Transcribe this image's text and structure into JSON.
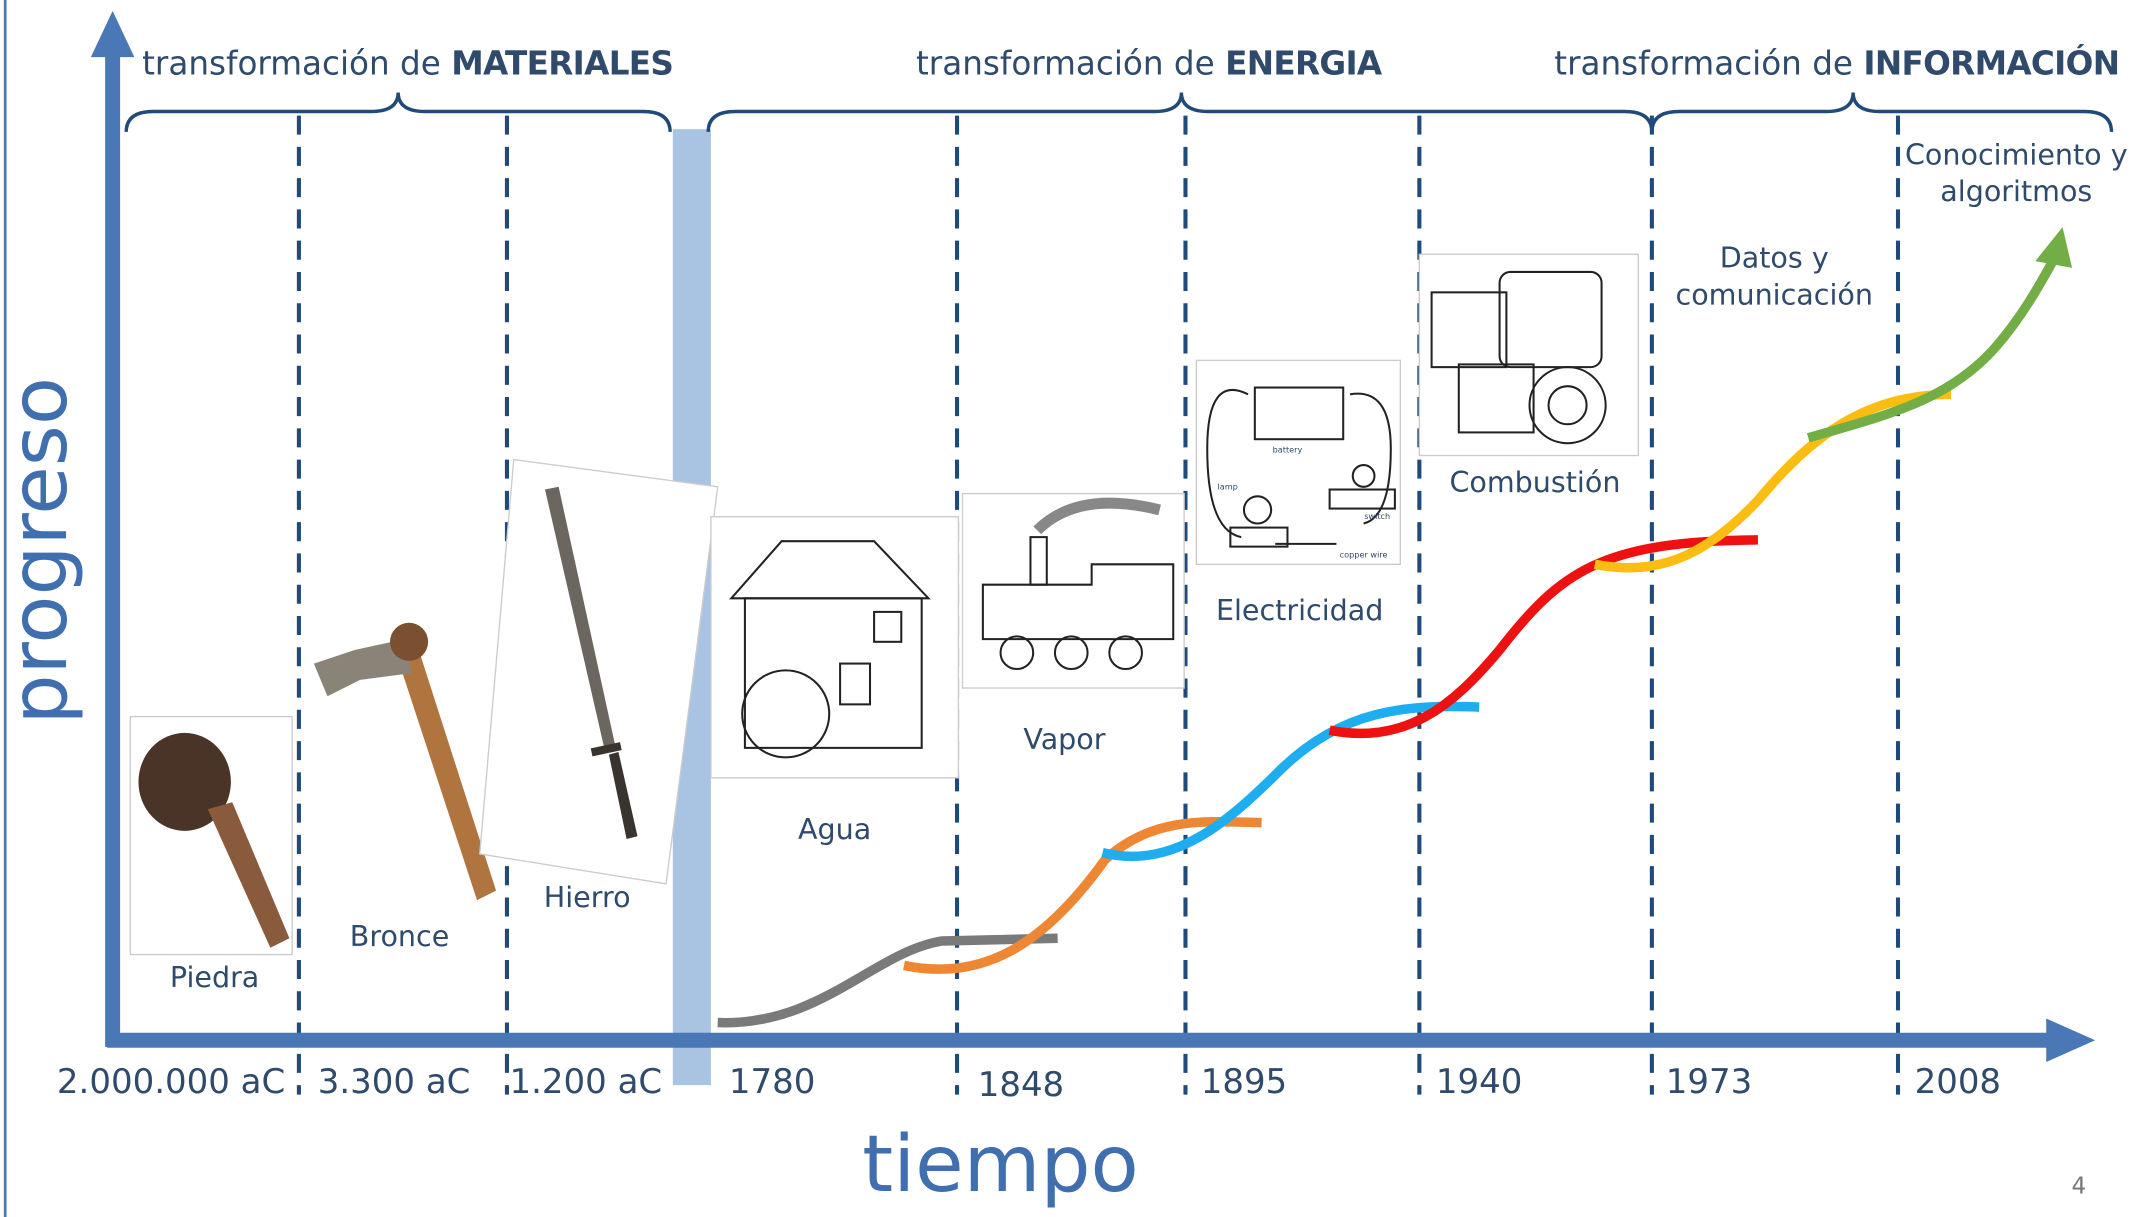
{
  "axes": {
    "y_label": "progreso",
    "x_label": "tiempo"
  },
  "sections": [
    {
      "prefix": "transformación de",
      "keyword": "MATERIALES"
    },
    {
      "prefix": "transformación de",
      "keyword": "ENERGIA"
    },
    {
      "prefix": "transformación de",
      "keyword": "INFORMACIÓN"
    }
  ],
  "dates": [
    "2.000.000 aC",
    "3.300 aC",
    "1.200 aC",
    "1780",
    "1848",
    "1895",
    "1940",
    "1973",
    "2008"
  ],
  "eras": [
    {
      "lines": [
        "Piedra"
      ]
    },
    {
      "lines": [
        "Bronce"
      ]
    },
    {
      "lines": [
        "Hierro"
      ]
    },
    {
      "lines": [
        "Agua"
      ]
    },
    {
      "lines": [
        "Vapor"
      ]
    },
    {
      "lines": [
        "Electricidad"
      ]
    },
    {
      "lines": [
        "Combustión"
      ]
    },
    {
      "lines": [
        "Datos y",
        "comunicación"
      ]
    },
    {
      "lines": [
        "Conocimiento y",
        "algoritmos"
      ]
    }
  ],
  "image_labels": {
    "battery": "battery",
    "lamp": "lamp",
    "switch": "switch",
    "wire": "copper wire"
  },
  "page_number": "4"
}
